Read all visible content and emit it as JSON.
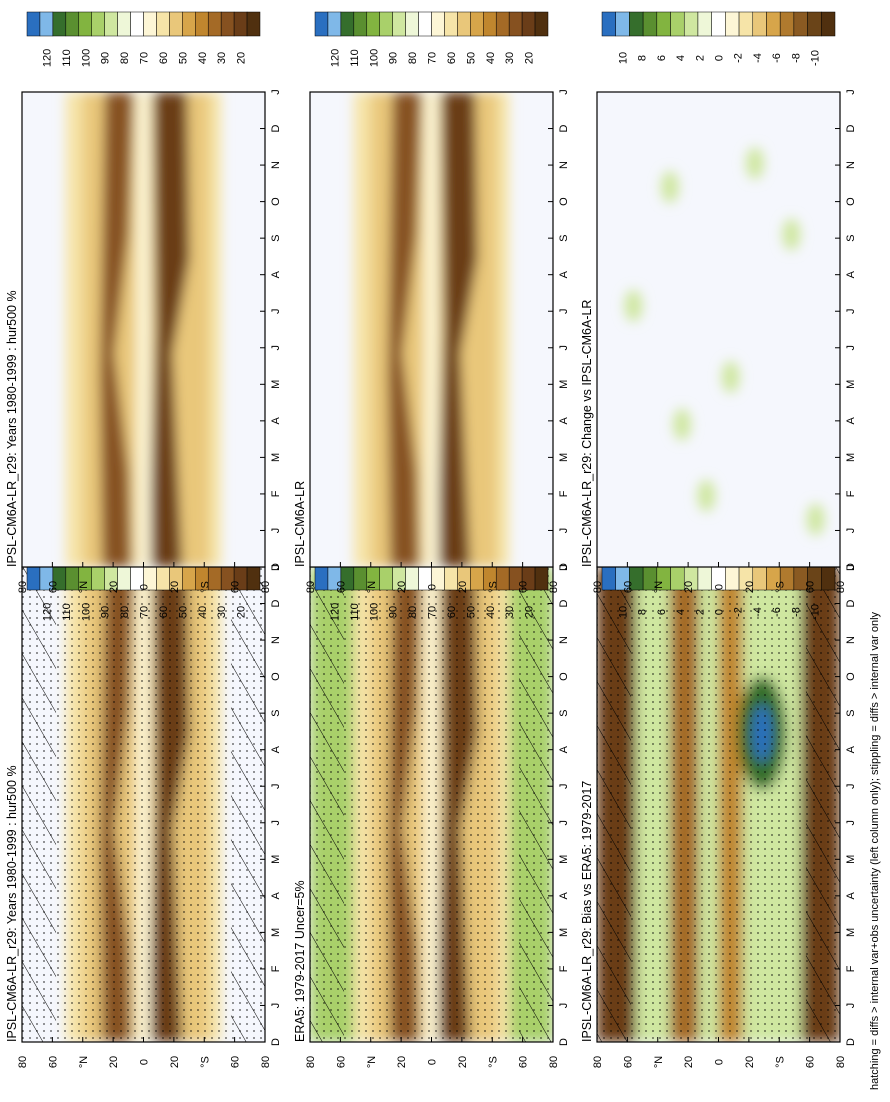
{
  "footer_note": "hatching = diffs > internal var+obs uncertainty (left column only); stippling = diffs > internal var only",
  "colors": {
    "plot_background": "#f5f7fd",
    "humidity_scale": [
      "#2a6fc0",
      "#7fb8e8",
      "#356e2c",
      "#5a8f30",
      "#82b440",
      "#a9d06a",
      "#cfe7a0",
      "#eef7d8",
      "#ffffff",
      "#fdf6d6",
      "#f6e4a8",
      "#e9c77a",
      "#d7a54a",
      "#c0862e",
      "#a46a26",
      "#865120",
      "#6a3d18",
      "#50300f"
    ],
    "difference_scale": [
      "#2a6fc0",
      "#7fb8e8",
      "#356e2c",
      "#5a8f30",
      "#82b440",
      "#a9d06a",
      "#cfe7a0",
      "#eef7d8",
      "#ffffff",
      "#fdf6d6",
      "#f6e4a8",
      "#e9c77a",
      "#d7a54a",
      "#b07a2e",
      "#8a5a22",
      "#6a4418",
      "#50300f"
    ]
  },
  "chart_data": [
    {
      "type": "heatmap",
      "title": "IPSL-CM6A-LR_r29: Years 1980-1999 : hur500 %",
      "x_ticks": [
        "D",
        "J",
        "F",
        "M",
        "A",
        "M",
        "J",
        "J",
        "A",
        "S",
        "O",
        "N",
        "D",
        "J"
      ],
      "y_ticks": [
        "80",
        "60",
        "°N",
        "20",
        "0",
        "20",
        "°S",
        "60",
        "80"
      ],
      "colorbar_ticks": [
        "120",
        "110",
        "100",
        "90",
        "80",
        "70",
        "60",
        "50",
        "40",
        "30",
        "20"
      ],
      "field": "humidity",
      "hatching": true,
      "stippling": true
    },
    {
      "type": "heatmap",
      "title": "IPSL-CM6A-LR_r29: Years 1980-1999 : hur500 %",
      "x_ticks": [
        "D",
        "J",
        "F",
        "M",
        "A",
        "M",
        "J",
        "J",
        "A",
        "S",
        "O",
        "N",
        "D",
        "J"
      ],
      "y_ticks": [
        "80",
        "60",
        "°N",
        "20",
        "0",
        "20",
        "°S",
        "60",
        "80"
      ],
      "colorbar_ticks": [
        "120",
        "110",
        "100",
        "90",
        "80",
        "70",
        "60",
        "50",
        "40",
        "30",
        "20"
      ],
      "field": "humidity",
      "hatching": false,
      "stippling": false
    },
    {
      "type": "heatmap",
      "title": "ERA5: 1979-2017 Uncer=5%",
      "x_ticks": [
        "D",
        "J",
        "F",
        "M",
        "A",
        "M",
        "J",
        "J",
        "A",
        "S",
        "O",
        "N",
        "D",
        "J"
      ],
      "y_ticks": [
        "80",
        "60",
        "°N",
        "20",
        "0",
        "20",
        "°S",
        "60",
        "80"
      ],
      "colorbar_ticks": [
        "120",
        "110",
        "100",
        "90",
        "80",
        "70",
        "60",
        "50",
        "40",
        "30",
        "20"
      ],
      "field": "era5",
      "hatching": true,
      "stippling": true
    },
    {
      "type": "heatmap",
      "title": "IPSL-CM6A-LR",
      "x_ticks": [
        "D",
        "J",
        "F",
        "M",
        "A",
        "M",
        "J",
        "J",
        "A",
        "S",
        "O",
        "N",
        "D",
        "J"
      ],
      "y_ticks": [
        "80",
        "60",
        "°N",
        "20",
        "0",
        "20",
        "°S",
        "60",
        "80"
      ],
      "colorbar_ticks": [
        "120",
        "110",
        "100",
        "90",
        "80",
        "70",
        "60",
        "50",
        "40",
        "30",
        "20"
      ],
      "field": "humidity",
      "hatching": false,
      "stippling": false
    },
    {
      "type": "heatmap",
      "title": "IPSL-CM6A-LR_r29: Bias vs ERA5: 1979-2017",
      "x_ticks": [
        "D",
        "J",
        "F",
        "M",
        "A",
        "M",
        "J",
        "J",
        "A",
        "S",
        "O",
        "N",
        "D",
        "J"
      ],
      "y_ticks": [
        "80",
        "60",
        "°N",
        "20",
        "0",
        "20",
        "°S",
        "60",
        "80"
      ],
      "colorbar_ticks": [
        "10",
        "8",
        "6",
        "4",
        "2",
        "0",
        "-2",
        "-4",
        "-6",
        "-8",
        "-10"
      ],
      "field": "bias",
      "hatching": true,
      "stippling": true
    },
    {
      "type": "heatmap",
      "title": "IPSL-CM6A-LR_r29: Change vs IPSL-CM6A-LR",
      "x_ticks": [
        "D",
        "J",
        "F",
        "M",
        "A",
        "M",
        "J",
        "J",
        "A",
        "S",
        "O",
        "N",
        "D",
        "J"
      ],
      "y_ticks": [
        "80",
        "60",
        "°N",
        "20",
        "0",
        "20",
        "°S",
        "60",
        "80"
      ],
      "colorbar_ticks": [
        "10",
        "8",
        "6",
        "4",
        "2",
        "0",
        "-2",
        "-4",
        "-6",
        "-8",
        "-10"
      ],
      "field": "change",
      "hatching": false,
      "stippling": false
    }
  ]
}
